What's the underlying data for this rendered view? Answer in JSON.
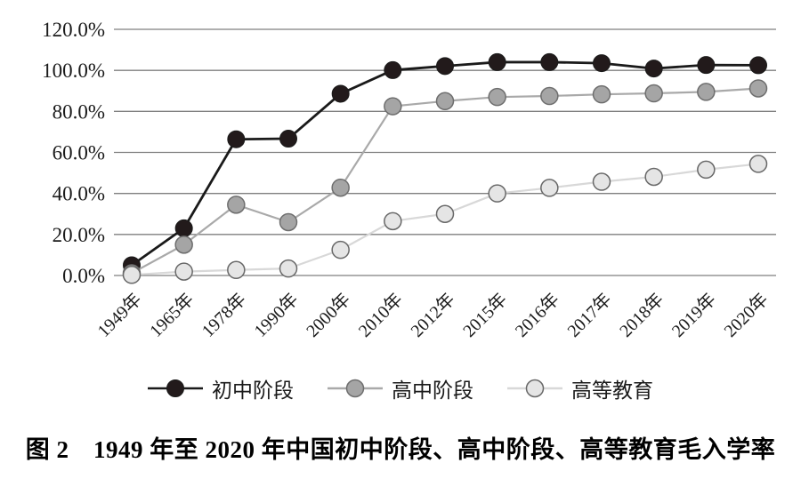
{
  "figure": {
    "caption": "图 2　1949 年至 2020 年中国初中阶段、高中阶段、高等教育毛入学率"
  },
  "colors": {
    "gridline": "#7f7f7f",
    "axis_text": "#1a1a1a",
    "background": "#ffffff"
  },
  "chart_data": {
    "type": "line",
    "title": "1949年至2020年中国初中阶段、高中阶段、高等教育毛入学率",
    "xlabel": "",
    "ylabel": "",
    "ylim": [
      0,
      120
    ],
    "ytick_step": 20,
    "ytick_labels": [
      "0.0%",
      "20.0%",
      "40.0%",
      "60.0%",
      "80.0%",
      "100.0%",
      "120.0%"
    ],
    "grid": "horizontal",
    "legend_position": "bottom",
    "categories": [
      "1949年",
      "1965年",
      "1978年",
      "1990年",
      "2000年",
      "2010年",
      "2012年",
      "2015年",
      "2016年",
      "2017年",
      "2018年",
      "2019年",
      "2020年"
    ],
    "series": [
      {
        "name": "初中阶段",
        "values": [
          5.0,
          23.0,
          66.4,
          66.7,
          88.6,
          100.1,
          102.1,
          104.0,
          104.0,
          103.5,
          100.9,
          102.6,
          102.5
        ],
        "line_color": "#1a1a1a",
        "line_width": 2.8,
        "marker_fill": "#221a1b",
        "marker_stroke": "#1a1a1a",
        "marker_stroke_width": 1
      },
      {
        "name": "高中阶段",
        "values": [
          1.1,
          15.0,
          34.5,
          26.0,
          42.8,
          82.5,
          85.0,
          87.0,
          87.5,
          88.3,
          88.8,
          89.5,
          91.2
        ],
        "line_color": "#a9a9a9",
        "line_width": 2.2,
        "marker_fill": "#a5a5a5",
        "marker_stroke": "#6e6e6e",
        "marker_stroke_width": 1.5
      },
      {
        "name": "高等教育",
        "values": [
          0.3,
          1.9,
          2.7,
          3.4,
          12.5,
          26.5,
          30.0,
          40.0,
          42.7,
          45.7,
          48.1,
          51.6,
          54.4
        ],
        "line_color": "#d8d8d8",
        "line_width": 2.2,
        "marker_fill": "#e5e5e5",
        "marker_stroke": "#686868",
        "marker_stroke_width": 1.5
      }
    ]
  }
}
